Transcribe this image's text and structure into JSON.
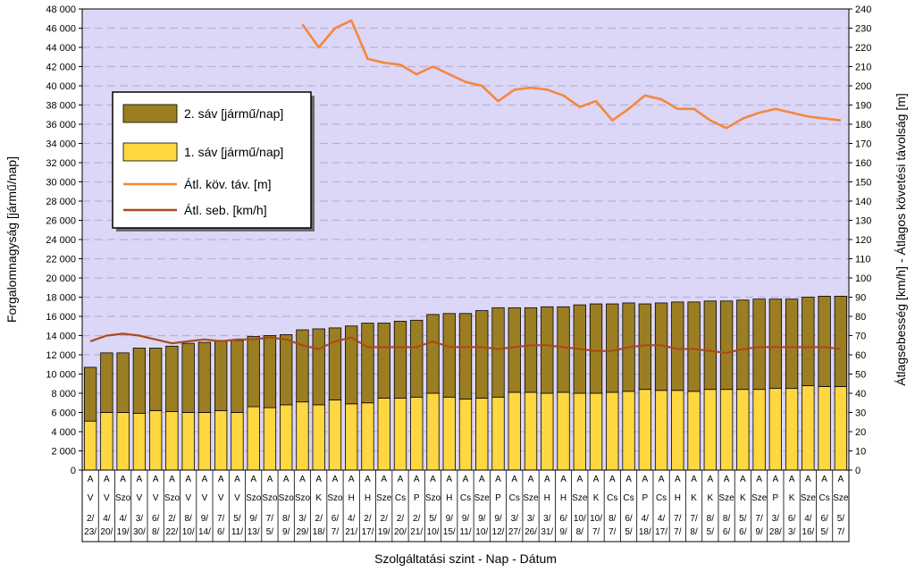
{
  "chart_data": {
    "type": "bar",
    "stacked": true,
    "xlabel": "Szolgáltatási szint - Nap - Dátum",
    "ylabel_left": "Forgalomnagyság [jármű/nap]",
    "ylabel_right": "Átlagsebesség [km/h] - Átlagos követési távolság [m]",
    "ylim_left": [
      0,
      48000
    ],
    "ylim_right": [
      0,
      240
    ],
    "left_ticks": [
      "0",
      "2 000",
      "4 000",
      "6 000",
      "8 000",
      "10 000",
      "12 000",
      "14 000",
      "16 000",
      "18 000",
      "20 000",
      "22 000",
      "24 000",
      "26 000",
      "28 000",
      "30 000",
      "32 000",
      "34 000",
      "36 000",
      "38 000",
      "40 000",
      "42 000",
      "44 000",
      "46 000",
      "48 000"
    ],
    "right_ticks": [
      "0",
      "10",
      "20",
      "30",
      "40",
      "50",
      "60",
      "70",
      "80",
      "90",
      "100",
      "110",
      "120",
      "130",
      "140",
      "150",
      "160",
      "170",
      "180",
      "190",
      "200",
      "210",
      "220",
      "230",
      "240"
    ],
    "grid": true,
    "legend_position": "left",
    "colors": {
      "plot_bg": "#dcd6f7",
      "lane2": "#9c7e22",
      "lane1": "#ffd740",
      "follow_dist": "#f5883a",
      "speed": "#a84c1a",
      "grid": "#b8b2d0"
    },
    "categories": [
      {
        "level": "A",
        "day": "V",
        "date": "2/23/"
      },
      {
        "level": "A",
        "day": "V",
        "date": "4/20/"
      },
      {
        "level": "A",
        "day": "Szo",
        "date": "4/19/"
      },
      {
        "level": "A",
        "day": "V",
        "date": "3/30/"
      },
      {
        "level": "A",
        "day": "V",
        "date": "6/8/"
      },
      {
        "level": "A",
        "day": "Szo",
        "date": "2/22/"
      },
      {
        "level": "A",
        "day": "V",
        "date": "8/10/"
      },
      {
        "level": "A",
        "day": "V",
        "date": "9/14/"
      },
      {
        "level": "A",
        "day": "V",
        "date": "7/6/"
      },
      {
        "level": "A",
        "day": "V",
        "date": "5/11/"
      },
      {
        "level": "A",
        "day": "Szo",
        "date": "9/13/"
      },
      {
        "level": "A",
        "day": "Szo",
        "date": "7/5/"
      },
      {
        "level": "A",
        "day": "Szo",
        "date": "8/9/"
      },
      {
        "level": "A",
        "day": "Szo",
        "date": "3/29/"
      },
      {
        "level": "A",
        "day": "K",
        "date": "2/18/"
      },
      {
        "level": "A",
        "day": "Szo",
        "date": "6/7/"
      },
      {
        "level": "A",
        "day": "H",
        "date": "4/21/"
      },
      {
        "level": "A",
        "day": "H",
        "date": "2/17/"
      },
      {
        "level": "A",
        "day": "Sze",
        "date": "2/19/"
      },
      {
        "level": "A",
        "day": "Cs",
        "date": "2/20/"
      },
      {
        "level": "A",
        "day": "P",
        "date": "2/21/"
      },
      {
        "level": "A",
        "day": "Szo",
        "date": "5/10/"
      },
      {
        "level": "A",
        "day": "H",
        "date": "9/15/"
      },
      {
        "level": "A",
        "day": "Cs",
        "date": "9/11/"
      },
      {
        "level": "A",
        "day": "Sze",
        "date": "9/10/"
      },
      {
        "level": "A",
        "day": "P",
        "date": "9/12/"
      },
      {
        "level": "A",
        "day": "Cs",
        "date": "3/27/"
      },
      {
        "level": "A",
        "day": "Sze",
        "date": "3/26/"
      },
      {
        "level": "A",
        "day": "H",
        "date": "3/31/"
      },
      {
        "level": "A",
        "day": "H",
        "date": "6/9/"
      },
      {
        "level": "A",
        "day": "Sze",
        "date": "10/8/"
      },
      {
        "level": "A",
        "day": "K",
        "date": "10/7/"
      },
      {
        "level": "A",
        "day": "Cs",
        "date": "8/7/"
      },
      {
        "level": "A",
        "day": "Cs",
        "date": "6/5/"
      },
      {
        "level": "A",
        "day": "P",
        "date": "4/18/"
      },
      {
        "level": "A",
        "day": "Cs",
        "date": "4/17/"
      },
      {
        "level": "A",
        "day": "H",
        "date": "7/7/"
      },
      {
        "level": "A",
        "day": "K",
        "date": "7/8/"
      },
      {
        "level": "A",
        "day": "K",
        "date": "8/5/"
      },
      {
        "level": "A",
        "day": "Sze",
        "date": "8/6/"
      },
      {
        "level": "A",
        "day": "K",
        "date": "5/6/"
      },
      {
        "level": "A",
        "day": "Sze",
        "date": "7/9/"
      },
      {
        "level": "A",
        "day": "P",
        "date": "3/28/"
      },
      {
        "level": "A",
        "day": "K",
        "date": "6/3/"
      },
      {
        "level": "A",
        "day": "Sze",
        "date": "4/16/"
      },
      {
        "level": "A",
        "day": "Cs",
        "date": "6/5/"
      },
      {
        "level": "A",
        "day": "Sze",
        "date": "5/7/"
      }
    ],
    "series": [
      {
        "name": "2. sáv [jármű/nap]",
        "type": "bar",
        "axis": "left",
        "values": [
          5600,
          6200,
          6200,
          6800,
          6500,
          6800,
          7200,
          7300,
          7300,
          7500,
          7300,
          7500,
          7300,
          7500,
          7900,
          7500,
          8100,
          8300,
          7800,
          8000,
          8000,
          8200,
          8700,
          8900,
          9100,
          9300,
          8800,
          8800,
          9000,
          8900,
          9200,
          9300,
          9200,
          9200,
          8900,
          9100,
          9200,
          9300,
          9200,
          9200,
          9300,
          9400,
          9300,
          9300,
          9200,
          9400,
          9400
        ]
      },
      {
        "name": "1. sáv [jármű/nap]",
        "type": "bar",
        "axis": "left",
        "values": [
          5100,
          6000,
          6000,
          5900,
          6200,
          6100,
          6000,
          6000,
          6200,
          6000,
          6600,
          6500,
          6800,
          7100,
          6800,
          7300,
          6900,
          7000,
          7500,
          7500,
          7600,
          8000,
          7600,
          7400,
          7500,
          7600,
          8100,
          8100,
          8000,
          8100,
          8000,
          8000,
          8100,
          8200,
          8400,
          8300,
          8300,
          8200,
          8400,
          8400,
          8400,
          8400,
          8500,
          8500,
          8800,
          8700,
          8700
        ]
      },
      {
        "name": "Átl. köv. táv. [m]",
        "type": "line",
        "axis": "right",
        "values": [
          null,
          null,
          null,
          null,
          null,
          null,
          null,
          null,
          null,
          null,
          null,
          null,
          null,
          232,
          220,
          230,
          234,
          214,
          212,
          211,
          206,
          210,
          206,
          202,
          200,
          192,
          198,
          199,
          198,
          195,
          189,
          192,
          182,
          188,
          195,
          193,
          188,
          188,
          182,
          178,
          183,
          186,
          188,
          186,
          184,
          183,
          182
        ]
      },
      {
        "name": "Átl. seb. [km/h]",
        "type": "line",
        "axis": "right",
        "values": [
          67,
          70,
          71,
          70,
          68,
          66,
          67,
          68,
          67,
          68,
          68,
          69,
          68,
          65,
          63,
          67,
          69,
          64,
          64,
          64,
          64,
          67,
          64,
          64,
          64,
          63,
          64,
          65,
          65,
          64,
          63,
          62,
          62,
          64,
          65,
          65,
          63,
          63,
          62,
          61,
          63,
          64,
          64,
          64,
          64,
          64,
          63
        ]
      }
    ],
    "legend": [
      {
        "label": "2. sáv [jármű/nap]",
        "kind": "swatch",
        "color": "#9c7e22"
      },
      {
        "label": "1. sáv [jármű/nap]",
        "kind": "swatch",
        "color": "#ffd740"
      },
      {
        "label": "Átl. köv. táv. [m]",
        "kind": "line",
        "color": "#f5883a"
      },
      {
        "label": "Átl. seb. [km/h]",
        "kind": "line",
        "color": "#a84c1a"
      }
    ]
  }
}
